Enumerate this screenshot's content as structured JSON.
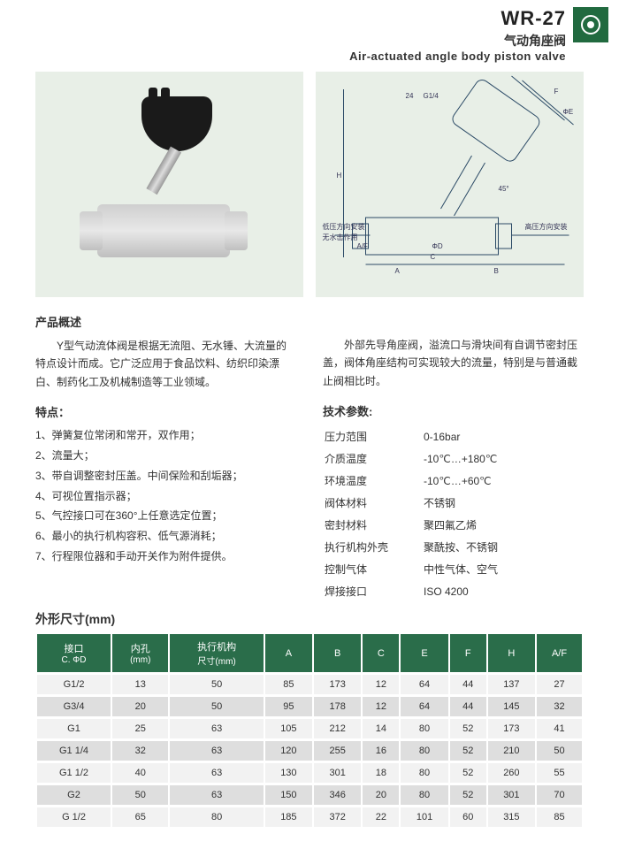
{
  "header": {
    "model": "WR-27",
    "title_cn": "气动角座阀",
    "title_en": "Air-actuated angle body piston valve",
    "badge_bg": "#216a3f"
  },
  "diagram_labels": {
    "F": "F",
    "E": "ΦE",
    "G14": "G1/4",
    "d24": "24",
    "H": "H",
    "ang": "45°",
    "AF": "A/F",
    "A": "A",
    "B": "B",
    "D": "ΦD",
    "C": "C",
    "left1": "低压方向安装",
    "left2": "无水击作用",
    "right1": "高压方向安装"
  },
  "overview": {
    "title": "产品概述",
    "para_left": "Y型气动流体阀是根据无流阻、无水锤、大流量的特点设计而成。它广泛应用于食品饮料、纺织印染漂白、制药化工及机械制造等工业领域。",
    "para_right": "外部先导角座阀，溢流口与滑块间有自调节密封压盖，阀体角座结构可实现较大的流量，特别是与普通截止阀相比时。"
  },
  "features": {
    "title": "特点：",
    "items": [
      "1、弹簧复位常闭和常开，双作用；",
      "2、流量大；",
      "3、带自调整密封压盖。中间保险和刮垢器；",
      "4、可视位置指示器；",
      "5、气控接口可在360°上任意选定位置；",
      "6、最小的执行机构容积、低气源消耗；",
      "7、行程限位器和手动开关作为附件提供。"
    ]
  },
  "specs": {
    "title": "技术参数:",
    "rows": [
      {
        "label": "压力范围",
        "value": "0-16bar"
      },
      {
        "label": "介质温度",
        "value": "-10℃…+180℃"
      },
      {
        "label": "环境温度",
        "value": "-10℃…+60℃"
      },
      {
        "label": "阀体材料",
        "value": "不锈钢"
      },
      {
        "label": "密封材料",
        "value": "聚四氟乙烯"
      },
      {
        "label": "执行机构外壳",
        "value": "聚酰按、不锈钢"
      },
      {
        "label": "控制气体",
        "value": "中性气体、空气"
      },
      {
        "label": "焊接接口",
        "value": "ISO 4200"
      }
    ]
  },
  "dimensions": {
    "title": "外形尺寸(mm)",
    "columns": [
      {
        "top": "接口",
        "sub": "C. ΦD"
      },
      {
        "top": "内孔",
        "sub": "(mm)"
      },
      {
        "top": "执行机构",
        "sub": "尺寸(mm)"
      },
      {
        "top": "A",
        "sub": ""
      },
      {
        "top": "B",
        "sub": ""
      },
      {
        "top": "C",
        "sub": ""
      },
      {
        "top": "E",
        "sub": ""
      },
      {
        "top": "F",
        "sub": ""
      },
      {
        "top": "H",
        "sub": ""
      },
      {
        "top": "A/F",
        "sub": ""
      }
    ],
    "rows": [
      [
        "G1/2",
        "13",
        "50",
        "85",
        "173",
        "12",
        "64",
        "44",
        "137",
        "27"
      ],
      [
        "G3/4",
        "20",
        "50",
        "95",
        "178",
        "12",
        "64",
        "44",
        "145",
        "32"
      ],
      [
        "G1",
        "25",
        "63",
        "105",
        "212",
        "14",
        "80",
        "52",
        "173",
        "41"
      ],
      [
        "G1 1/4",
        "32",
        "63",
        "120",
        "255",
        "16",
        "80",
        "52",
        "210",
        "50"
      ],
      [
        "G1 1/2",
        "40",
        "63",
        "130",
        "301",
        "18",
        "80",
        "52",
        "260",
        "55"
      ],
      [
        "G2",
        "50",
        "63",
        "150",
        "346",
        "20",
        "80",
        "52",
        "301",
        "70"
      ],
      [
        "G 1/2",
        "65",
        "80",
        "185",
        "372",
        "22",
        "101",
        "60",
        "315",
        "85"
      ]
    ]
  },
  "colors": {
    "panel_bg": "#e8efe7",
    "table_head": "#2a6d4a",
    "row_light": "#f2f2f2",
    "row_dark": "#dedede"
  }
}
